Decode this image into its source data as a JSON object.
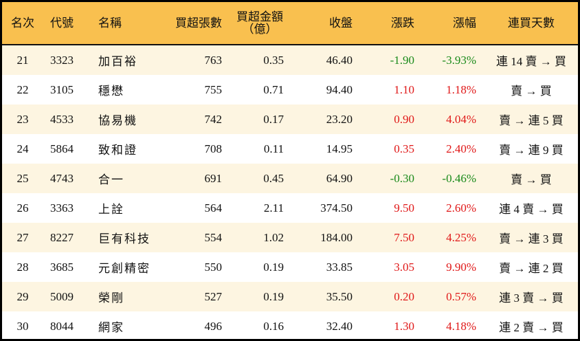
{
  "columns": [
    "名次",
    "代號",
    "名稱",
    "買超張數",
    "買超金額",
    "（億）",
    "收盤",
    "漲跌",
    "漲幅",
    "連買天數"
  ],
  "colors": {
    "header_bg": "#f9c04f",
    "row_alt_bg": "#fdf5e1",
    "up": "#e01818",
    "down": "#1a8a1a"
  },
  "rows": [
    [
      "21",
      "3323",
      "加百裕",
      "763",
      "0.35",
      "46.40",
      "-1.90",
      "-3.93%",
      "連 14 賣 → 買",
      "down"
    ],
    [
      "22",
      "3105",
      "穩懋",
      "755",
      "0.71",
      "94.40",
      "1.10",
      "1.18%",
      "賣 → 買",
      "up"
    ],
    [
      "23",
      "4533",
      "協易機",
      "742",
      "0.17",
      "23.20",
      "0.90",
      "4.04%",
      "賣 → 連 5 買",
      "up"
    ],
    [
      "24",
      "5864",
      "致和證",
      "708",
      "0.11",
      "14.95",
      "0.35",
      "2.40%",
      "賣 → 連 9 買",
      "up"
    ],
    [
      "25",
      "4743",
      "合一",
      "691",
      "0.45",
      "64.90",
      "-0.30",
      "-0.46%",
      "賣 → 買",
      "down"
    ],
    [
      "26",
      "3363",
      "上詮",
      "564",
      "2.11",
      "374.50",
      "9.50",
      "2.60%",
      "連 4 賣 → 買",
      "up"
    ],
    [
      "27",
      "8227",
      "巨有科技",
      "554",
      "1.02",
      "184.00",
      "7.50",
      "4.25%",
      "賣 → 連 3 買",
      "up"
    ],
    [
      "28",
      "3685",
      "元創精密",
      "550",
      "0.19",
      "33.85",
      "3.05",
      "9.90%",
      "賣 → 連 2 買",
      "up"
    ],
    [
      "29",
      "5009",
      "榮剛",
      "527",
      "0.19",
      "35.50",
      "0.20",
      "0.57%",
      "連 3 賣 → 買",
      "up"
    ],
    [
      "30",
      "8044",
      "網家",
      "496",
      "0.16",
      "32.40",
      "1.30",
      "4.18%",
      "連 2 賣 → 買",
      "up"
    ]
  ]
}
